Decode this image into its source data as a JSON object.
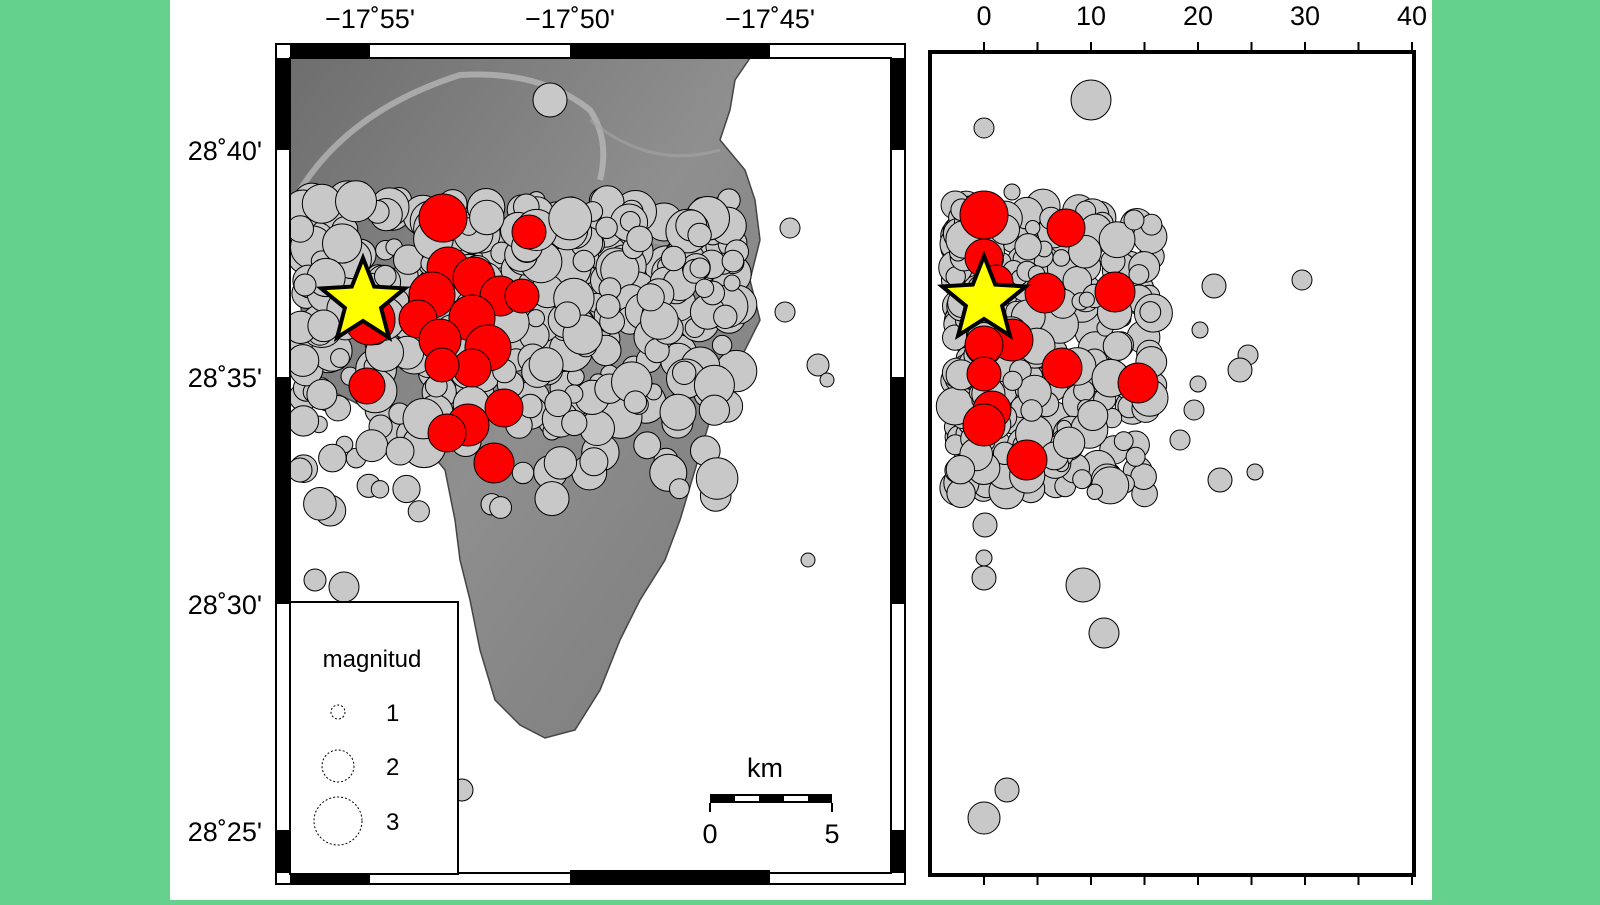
{
  "map": {
    "lon_ticks": [
      "−17˚55'",
      "−17˚50'",
      "−17˚45'"
    ],
    "lat_ticks": [
      "28˚40'",
      "28˚35'",
      "28˚30'",
      "28˚25'"
    ],
    "legend": {
      "title": "magnitud",
      "entries": [
        {
          "label": "1",
          "magnitude": 1
        },
        {
          "label": "2",
          "magnitude": 2
        },
        {
          "label": "3",
          "magnitude": 3
        }
      ]
    },
    "scale_bar": {
      "unit": "km",
      "start": "0",
      "end": "5"
    }
  },
  "depth_panel": {
    "ticks": [
      "0",
      "10",
      "20",
      "30",
      "40"
    ]
  },
  "colors": {
    "background": "#64d28c",
    "event_gray": "#c8c8c8",
    "event_red": "#ff0000",
    "epicenter_star": "#ffff00",
    "land": "#8a8a8a",
    "sea": "#ffffff"
  },
  "icons": {
    "mainshock": "star-icon"
  }
}
